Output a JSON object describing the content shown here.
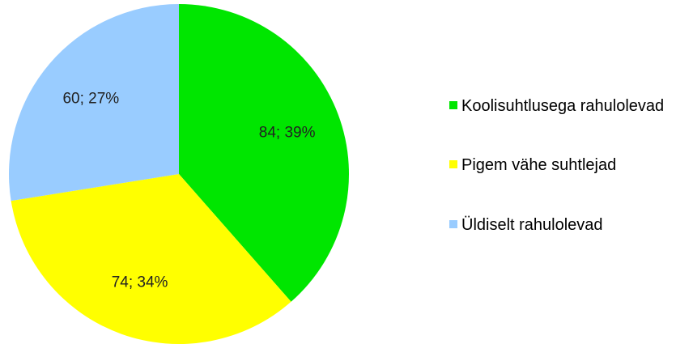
{
  "chart_data": {
    "type": "pie",
    "categories": [
      "Koolisuhtlusega rahulolevad",
      "Pigem vähe suhtlejad",
      "Üldiselt rahulolevad"
    ],
    "values": [
      84,
      74,
      60
    ],
    "value_labels": [
      "84; 39%",
      "74; 34%",
      "60; 27%"
    ],
    "colors": [
      "#00e600",
      "#ffff00",
      "#99ccff"
    ],
    "legend": "right"
  }
}
